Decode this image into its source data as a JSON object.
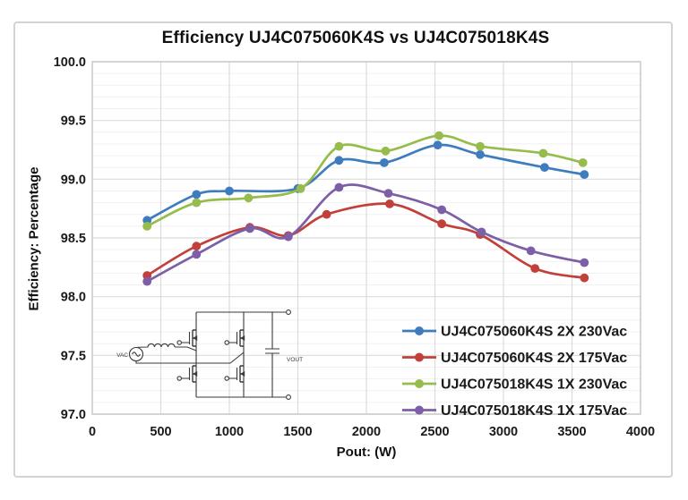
{
  "chart_data": {
    "type": "line",
    "title": "Efficiency UJ4C075060K4S vs UJ4C075018K4S",
    "xlabel": "Pout: (W)",
    "ylabel": "Efficiency: Percentage",
    "xlim": [
      0,
      4000
    ],
    "ylim": [
      97.0,
      100.0
    ],
    "x_ticks": [
      "0",
      "500",
      "1000",
      "1500",
      "2000",
      "2500",
      "3000",
      "3500",
      "4000"
    ],
    "y_ticks": [
      "97.0",
      "97.5",
      "98.0",
      "98.5",
      "99.0",
      "99.5",
      "100.0"
    ],
    "y_minor_step": 0.1,
    "grid": "vertical major every 500 W; horizontal major every 0.5 with minor lines every 0.1",
    "legend_position": "inside-bottom-right",
    "line_style": "smoothed with circular markers",
    "series": [
      {
        "name": "UJ4C075060K4S 2X 230Vac",
        "color": "#3E7CBE",
        "x": [
          400,
          760,
          1000,
          1500,
          1800,
          2130,
          2520,
          2830,
          3300,
          3590
        ],
        "y": [
          98.65,
          98.87,
          98.9,
          98.92,
          99.16,
          99.14,
          99.29,
          99.21,
          99.1,
          99.04
        ]
      },
      {
        "name": "UJ4C075060K4S 2X 175Vac",
        "color": "#C1413A",
        "x": [
          400,
          760,
          1150,
          1430,
          1710,
          2170,
          2550,
          2830,
          3230,
          3590
        ],
        "y": [
          98.18,
          98.43,
          98.59,
          98.52,
          98.7,
          98.79,
          98.62,
          98.53,
          98.24,
          98.16
        ]
      },
      {
        "name": "UJ4C075018K4S 1X 230Vac",
        "color": "#96BC4C",
        "x": [
          400,
          760,
          1140,
          1520,
          1800,
          2140,
          2530,
          2830,
          3290,
          3580
        ],
        "y": [
          98.6,
          98.8,
          98.84,
          98.92,
          99.28,
          99.24,
          99.37,
          99.28,
          99.22,
          99.14
        ]
      },
      {
        "name": "UJ4C075018K4S 1X 175Vac",
        "color": "#7C5FA7",
        "x": [
          400,
          760,
          1150,
          1430,
          1800,
          2160,
          2550,
          2840,
          3200,
          3590
        ],
        "y": [
          98.13,
          98.36,
          98.58,
          98.51,
          98.93,
          98.88,
          98.74,
          98.55,
          98.39,
          98.29
        ]
      }
    ],
    "inset": {
      "description": "totem-pole PFC bridge schematic: AC source, boost inductor, four MOSFETs, output capacitor",
      "labels": {
        "source": "VAC",
        "output": "VOUT"
      }
    }
  }
}
